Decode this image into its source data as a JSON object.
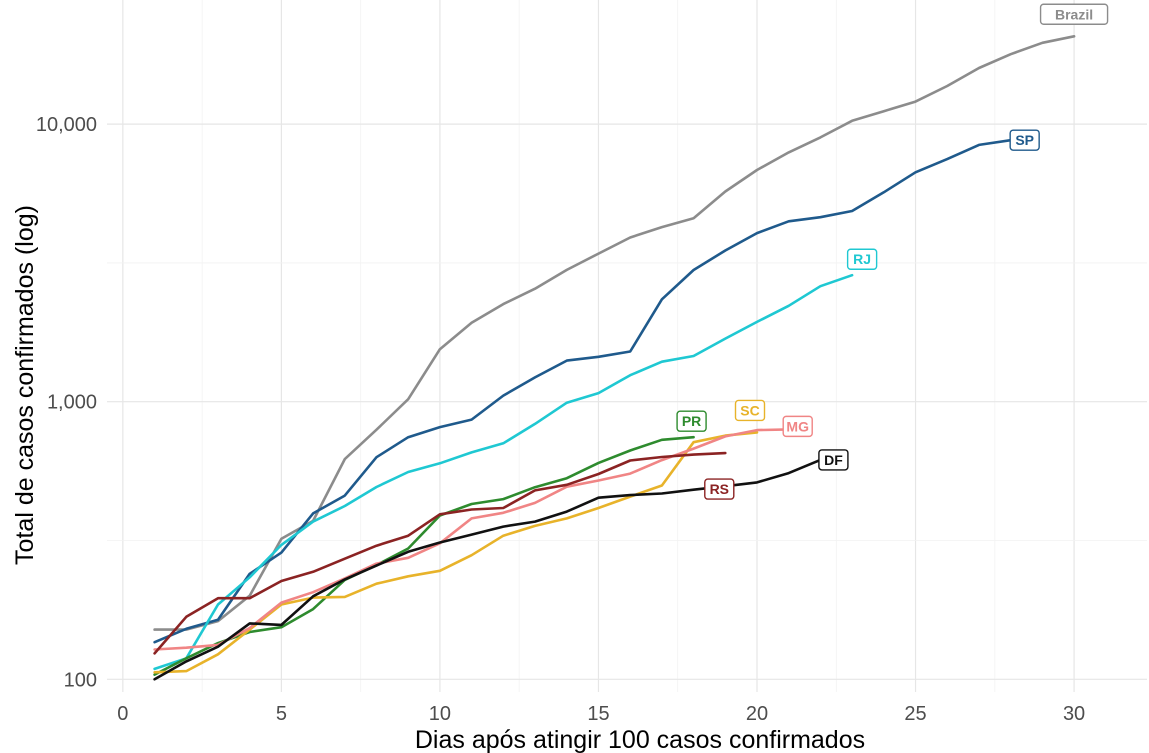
{
  "chart_data": {
    "type": "line",
    "title": "",
    "xlabel": "Dias após atingir 100 casos confirmados",
    "ylabel": "Total de casos confirmados (log)",
    "y_scale": "log",
    "xlim": [
      -0.5,
      32.3
    ],
    "ylim": [
      90,
      28000
    ],
    "grid": true,
    "legend": "direct labels at line ends",
    "x_ticks": [
      0,
      5,
      10,
      15,
      20,
      25,
      30
    ],
    "x_tick_labels": [
      "0",
      "5",
      "10",
      "15",
      "20",
      "25",
      "30"
    ],
    "y_ticks": [
      100,
      1000,
      10000
    ],
    "y_tick_labels": [
      "100",
      "1,000",
      "10,000"
    ],
    "series": [
      {
        "name": "Brazil",
        "color": "#8c8c8c",
        "x": [
          1,
          2,
          3,
          4,
          5,
          6,
          7,
          8,
          9,
          10,
          11,
          12,
          13,
          14,
          15,
          16,
          17,
          18,
          19,
          20,
          21,
          22,
          23,
          24,
          25,
          26,
          27,
          28,
          29,
          30
        ],
        "values": [
          151,
          151,
          162,
          200,
          321,
          372,
          621,
          793,
          1021,
          1546,
          1924,
          2247,
          2554,
          2985,
          3417,
          3904,
          4256,
          4579,
          5717,
          6836,
          7910,
          8960,
          10278,
          11130,
          12056,
          13717,
          15927,
          17857,
          19638,
          20727
        ]
      },
      {
        "name": "SP",
        "color": "#1f5a8c",
        "x": [
          1,
          2,
          3,
          4,
          5,
          6,
          7,
          8,
          9,
          10,
          11,
          12,
          13,
          14,
          15,
          16,
          17,
          18,
          19,
          20,
          21,
          22,
          23,
          24,
          25,
          26,
          27,
          28
        ],
        "values": [
          136,
          152,
          164,
          240,
          286,
          396,
          459,
          631,
          745,
          810,
          862,
          1052,
          1223,
          1406,
          1451,
          1517,
          2339,
          2981,
          3506,
          4048,
          4466,
          4620,
          4866,
          5682,
          6708,
          7480,
          8419,
          8755
        ]
      },
      {
        "name": "RJ",
        "color": "#1fc8d2",
        "x": [
          1,
          2,
          3,
          4,
          5,
          6,
          7,
          8,
          9,
          10,
          11,
          12,
          13,
          14,
          15,
          16,
          17,
          18,
          19,
          20,
          21,
          22,
          23
        ],
        "values": [
          109,
          119,
          186,
          233,
          305,
          370,
          421,
          493,
          558,
          600,
          657,
          708,
          832,
          992,
          1074,
          1246,
          1394,
          1461,
          1688,
          1938,
          2216,
          2607,
          2855
        ]
      },
      {
        "name": "PR",
        "color": "#2e8b2e",
        "x": [
          1,
          2,
          3,
          4,
          5,
          6,
          7,
          8,
          9,
          10,
          11,
          12,
          13,
          14,
          15,
          16,
          17,
          18
        ],
        "values": [
          104,
          119,
          135,
          148,
          154,
          179,
          228,
          258,
          296,
          389,
          428,
          446,
          492,
          530,
          602,
          667,
          729,
          745
        ]
      },
      {
        "name": "SC",
        "color": "#e8b32a",
        "x": [
          1,
          2,
          3,
          4,
          5,
          6,
          7,
          8,
          9,
          10,
          11,
          12,
          13,
          14,
          15,
          16,
          17,
          18,
          19,
          20
        ],
        "values": [
          106,
          107,
          123,
          151,
          186,
          197,
          198,
          221,
          235,
          246,
          280,
          329,
          357,
          380,
          414,
          455,
          499,
          715,
          755,
          775
        ]
      },
      {
        "name": "MG",
        "color": "#f08585",
        "x": [
          1,
          2,
          3,
          4,
          5,
          6,
          7,
          8,
          9,
          10,
          11,
          12,
          13,
          14,
          15,
          16,
          17,
          18,
          19,
          20,
          21
        ],
        "values": [
          128,
          130,
          133,
          153,
          189,
          206,
          231,
          261,
          274,
          309,
          380,
          398,
          432,
          494,
          520,
          551,
          616,
          678,
          750,
          790,
          795
        ]
      },
      {
        "name": "RS",
        "color": "#8b2323",
        "x": [
          1,
          2,
          3,
          4,
          5,
          6,
          7,
          8,
          9,
          10,
          11,
          12,
          13,
          14,
          15,
          16,
          17,
          18,
          19
        ],
        "values": [
          124,
          168,
          196,
          196,
          226,
          244,
          272,
          303,
          329,
          393,
          409,
          414,
          479,
          502,
          549,
          614,
          632,
          645,
          653
        ]
      },
      {
        "name": "DF",
        "color": "#111111",
        "x": [
          1,
          2,
          3,
          4,
          5,
          6,
          7,
          8,
          9,
          10,
          11,
          12,
          13,
          14,
          15,
          16,
          17,
          18,
          19,
          20,
          21,
          22
        ],
        "values": [
          100,
          116,
          131,
          159,
          157,
          199,
          229,
          257,
          288,
          311,
          332,
          355,
          370,
          402,
          451,
          461,
          467,
          482,
          496,
          512,
          553,
          617
        ]
      }
    ]
  }
}
